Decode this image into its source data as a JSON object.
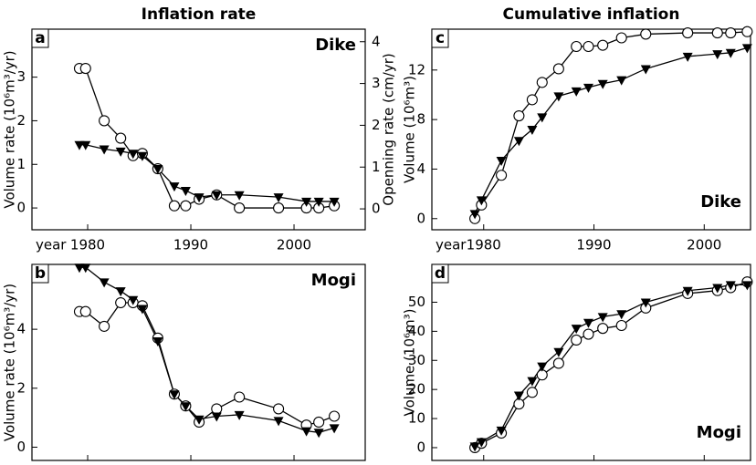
{
  "chart_data": [
    {
      "type": "line",
      "title": "Inflation rate",
      "panel_label": "a",
      "annotation": "Dike",
      "annotation_corner": "upper right",
      "x_label": "year",
      "y_label": "Volume rate (10⁶m³/yr)",
      "y2_label": "Openning rate (cm/yr)",
      "x": [
        1979.2,
        1979.8,
        1981.6,
        1983.2,
        1984.4,
        1985.3,
        1986.8,
        1988.4,
        1989.5,
        1990.8,
        1992.5,
        1994.7,
        1998.5,
        2001.2,
        2002.4,
        2003.9
      ],
      "series": [
        {
          "color": "#000000",
          "marker": "circle",
          "values": [
            3.2,
            3.2,
            2.0,
            1.6,
            1.2,
            1.25,
            0.9,
            0.05,
            0.05,
            0.2,
            0.3,
            0.0,
            0.0,
            0.0,
            0.0,
            0.05
          ]
        },
        {
          "color": "#000000",
          "marker": "triangle",
          "values": [
            1.45,
            1.45,
            1.35,
            1.3,
            1.25,
            1.2,
            0.9,
            0.5,
            0.4,
            0.25,
            0.3,
            0.3,
            0.25,
            0.15,
            0.15,
            0.15
          ]
        }
      ],
      "xlim": [
        1974.6,
        2006.9
      ],
      "xticks": [
        1980,
        1990,
        2000
      ],
      "ylim": [
        -0.5,
        4.1
      ],
      "yticks": [
        0,
        1,
        2,
        3
      ],
      "y2lim": [
        -0.5,
        4.3
      ],
      "y2ticks": [
        0,
        1,
        2,
        3,
        4
      ]
    },
    {
      "type": "line",
      "panel_label": "b",
      "annotation": "Mogi",
      "annotation_corner": "upper right",
      "y_label": "Volume rate (10⁶m³/yr)",
      "x": [
        1979.2,
        1979.8,
        1981.6,
        1983.2,
        1984.4,
        1985.3,
        1986.8,
        1988.4,
        1989.5,
        1990.8,
        1992.5,
        1994.7,
        1998.5,
        2001.2,
        2002.4,
        2003.9
      ],
      "series": [
        {
          "color": "#000000",
          "marker": "circle",
          "values": [
            4.6,
            4.6,
            4.1,
            4.9,
            4.9,
            4.8,
            3.7,
            1.8,
            1.4,
            0.85,
            1.3,
            1.7,
            1.3,
            0.75,
            0.85,
            1.05
          ]
        },
        {
          "color": "#000000",
          "marker": "triangle",
          "values": [
            6.1,
            6.1,
            5.6,
            5.3,
            5.0,
            4.7,
            3.6,
            1.8,
            1.4,
            0.95,
            1.05,
            1.1,
            0.9,
            0.55,
            0.5,
            0.65
          ]
        }
      ],
      "xlim": [
        1974.6,
        2006.9
      ],
      "ylim": [
        -0.45,
        6.2
      ],
      "yticks": [
        0,
        2,
        4
      ]
    },
    {
      "type": "line",
      "title": "Cumulative inflation",
      "panel_label": "c",
      "annotation": "Dike",
      "annotation_corner": "lower right",
      "x_label": "year",
      "y_label": "Volume (10⁶m³)",
      "x": [
        1979.2,
        1979.8,
        1981.6,
        1983.2,
        1984.4,
        1985.3,
        1986.8,
        1988.4,
        1989.5,
        1990.8,
        1992.5,
        1994.7,
        1998.5,
        2001.2,
        2002.4,
        2003.9
      ],
      "series": [
        {
          "color": "#000000",
          "marker": "circle",
          "values": [
            0,
            1.1,
            3.5,
            8.3,
            9.6,
            11,
            12.1,
            13.9,
            13.9,
            14.0,
            14.6,
            14.9,
            15.0,
            15.0,
            15.0,
            15.1
          ]
        },
        {
          "color": "#000000",
          "marker": "triangle",
          "values": [
            0.4,
            1.5,
            4.7,
            6.3,
            7.2,
            8.2,
            9.9,
            10.3,
            10.6,
            10.9,
            11.2,
            12.1,
            13.1,
            13.3,
            13.4,
            13.8
          ]
        }
      ],
      "xlim": [
        1975.3,
        2004.2
      ],
      "xticks": [
        1980,
        1990,
        2000
      ],
      "ylim": [
        -0.9,
        15.3
      ],
      "yticks": [
        0,
        4,
        8,
        12
      ]
    },
    {
      "type": "line",
      "panel_label": "d",
      "annotation": "Mogi",
      "annotation_corner": "lower right",
      "y_label": "Volume (10⁶m³)",
      "x": [
        1979.2,
        1979.8,
        1981.6,
        1983.2,
        1984.4,
        1985.3,
        1986.8,
        1988.4,
        1989.5,
        1990.8,
        1992.5,
        1994.7,
        1998.5,
        2001.2,
        2002.4,
        2003.9
      ],
      "series": [
        {
          "color": "#000000",
          "marker": "circle",
          "values": [
            0,
            1.5,
            5,
            15,
            19,
            25,
            29,
            37,
            39,
            41,
            42,
            48,
            53,
            54,
            55,
            57
          ]
        },
        {
          "color": "#000000",
          "marker": "triangle",
          "values": [
            0.5,
            2,
            6,
            18,
            23,
            28,
            33,
            41,
            43,
            45,
            46,
            50,
            54,
            55,
            56,
            56
          ]
        }
      ],
      "xlim": [
        1975.3,
        2004.2
      ],
      "ylim": [
        -4.4,
        63
      ],
      "yticks": [
        0,
        10,
        20,
        30,
        40,
        50
      ]
    }
  ]
}
